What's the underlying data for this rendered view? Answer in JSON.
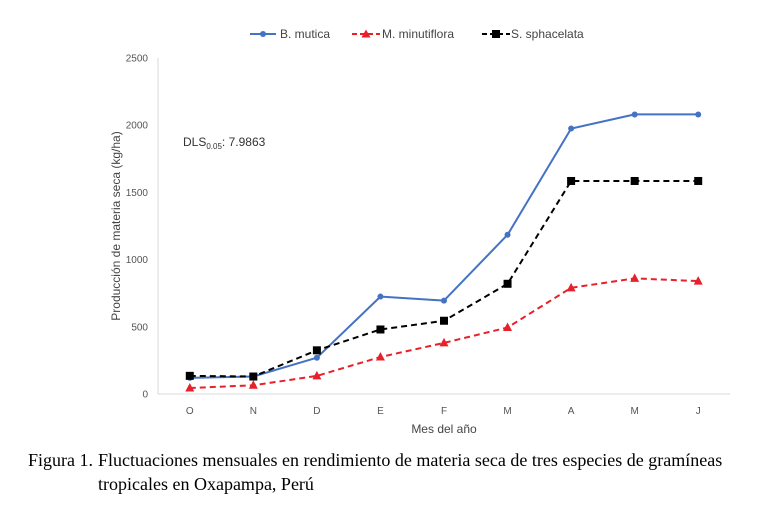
{
  "chart_data": {
    "type": "line",
    "categories": [
      "O",
      "N",
      "D",
      "E",
      "F",
      "M",
      "A",
      "M",
      "J"
    ],
    "series": [
      {
        "name": "B. mutica",
        "color": "#4472C4",
        "marker": "circle",
        "dash": "solid",
        "values": [
          120,
          130,
          270,
          725,
          695,
          1185,
          1975,
          2080,
          2080
        ]
      },
      {
        "name": "M. minutiflora",
        "color": "#E8202A",
        "marker": "triangle",
        "dash": "dashed",
        "values": [
          45,
          65,
          135,
          275,
          380,
          495,
          790,
          860,
          840
        ]
      },
      {
        "name": "S. sphacelata",
        "color": "#000000",
        "marker": "square",
        "dash": "dashed",
        "values": [
          135,
          130,
          325,
          480,
          545,
          820,
          1585,
          1585,
          1585
        ]
      }
    ],
    "y_ticks": [
      "0",
      "500",
      "1000",
      "1500",
      "2000",
      "2500"
    ],
    "ylim": [
      0,
      2500
    ],
    "xlabel": "Mes del año",
    "ylabel": "Producción de materia seca (kg/ha)",
    "legend_position": "top",
    "grid": false,
    "annotation": {
      "main": "DLS",
      "sub": "0.05",
      "value": ": 7.9863"
    }
  },
  "caption": {
    "label": "Figura 1.",
    "text": "Fluctuaciones mensuales en rendimiento de materia seca de tres especies de gramíneas tropicales en Oxapampa, Perú"
  }
}
